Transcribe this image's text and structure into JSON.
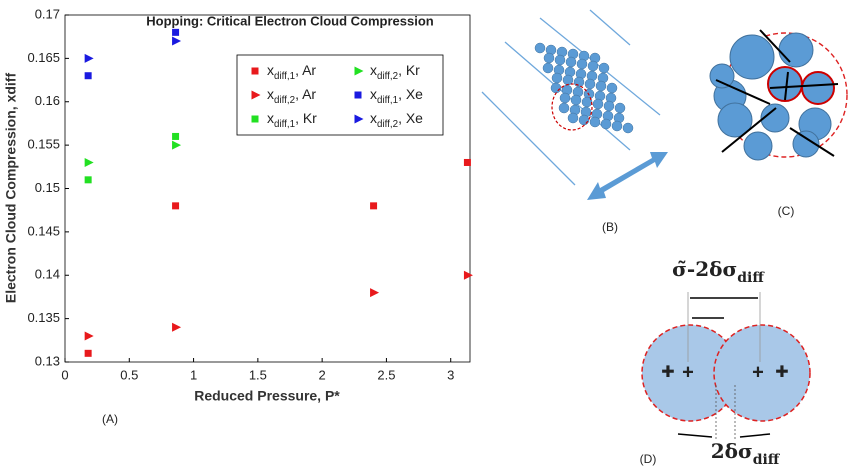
{
  "chart_data": {
    "type": "scatter",
    "title": "Hopping: Critical Electron Cloud Compression",
    "x_label": "Reduced Pressure, P*",
    "y_label": "Electron Cloud Compression, xdiff",
    "xlim": [
      0,
      3.15
    ],
    "ylim": [
      0.13,
      0.17
    ],
    "xticks": [
      0,
      0.5,
      1,
      1.5,
      2,
      2.5,
      3
    ],
    "yticks": [
      0.13,
      0.135,
      0.14,
      0.145,
      0.15,
      0.155,
      0.16,
      0.165,
      0.17
    ],
    "legend": "top-right",
    "series": [
      {
        "name": "xdiff,1, Ar",
        "color": "#e8191c",
        "marker": "square",
        "x": [
          0.18,
          0.86,
          2.4,
          3.13
        ],
        "values": [
          0.131,
          0.148,
          0.148,
          0.153
        ]
      },
      {
        "name": "xdiff,2, Ar",
        "color": "#e8191c",
        "marker": "triangle",
        "x": [
          0.18,
          0.86,
          2.4,
          3.13
        ],
        "values": [
          0.133,
          0.134,
          0.138,
          0.14
        ]
      },
      {
        "name": "xdiff,1, Kr",
        "color": "#22e022",
        "marker": "square",
        "x": [
          0.18,
          0.86
        ],
        "values": [
          0.151,
          0.156
        ]
      },
      {
        "name": "xdiff,2, Kr",
        "color": "#22e022",
        "marker": "triangle",
        "x": [
          0.18,
          0.86
        ],
        "values": [
          0.153,
          0.155
        ]
      },
      {
        "name": "xdiff,1, Xe",
        "color": "#1a1ae0",
        "marker": "square",
        "x": [
          0.18,
          0.86
        ],
        "values": [
          0.163,
          0.168
        ]
      },
      {
        "name": "xdiff,2, Xe",
        "color": "#1a1ae0",
        "marker": "triangle",
        "x": [
          0.18,
          0.86
        ],
        "values": [
          0.165,
          0.167
        ]
      }
    ]
  },
  "panels": {
    "a": "(A)",
    "b": "(B)",
    "c": "(C)",
    "d": "(D)",
    "d_top_label": "σ̃-2δσdiff",
    "d_bottom_label": "2δσdiff"
  }
}
